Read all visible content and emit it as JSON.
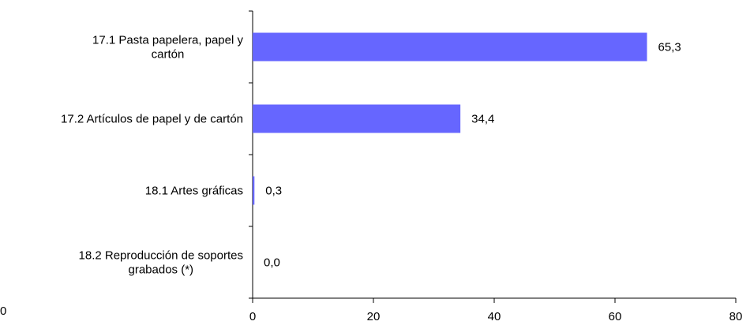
{
  "chart_data": {
    "type": "bar",
    "orientation": "horizontal",
    "categories": [
      [
        "17.1 Pasta papelera, papel y",
        "cartón"
      ],
      [
        "17.2 Artículos de papel y de cartón"
      ],
      [
        "18.1 Artes gráficas"
      ],
      [
        "18.2 Reproducción de soportes",
        "grabados (*)"
      ]
    ],
    "values": [
      65.3,
      34.4,
      0.3,
      0.0
    ],
    "value_labels": [
      "65,3",
      "34,4",
      "0,3",
      "0,0"
    ],
    "xlim": [
      0,
      80
    ],
    "x_ticks": [
      0,
      20,
      40,
      60,
      80
    ],
    "x_tick_labels": [
      "0",
      "20",
      "40",
      "60",
      "80"
    ],
    "bar_color": "#6666ff",
    "grid": false,
    "title": "",
    "xlabel": "",
    "ylabel": ""
  },
  "stray_label": "0"
}
